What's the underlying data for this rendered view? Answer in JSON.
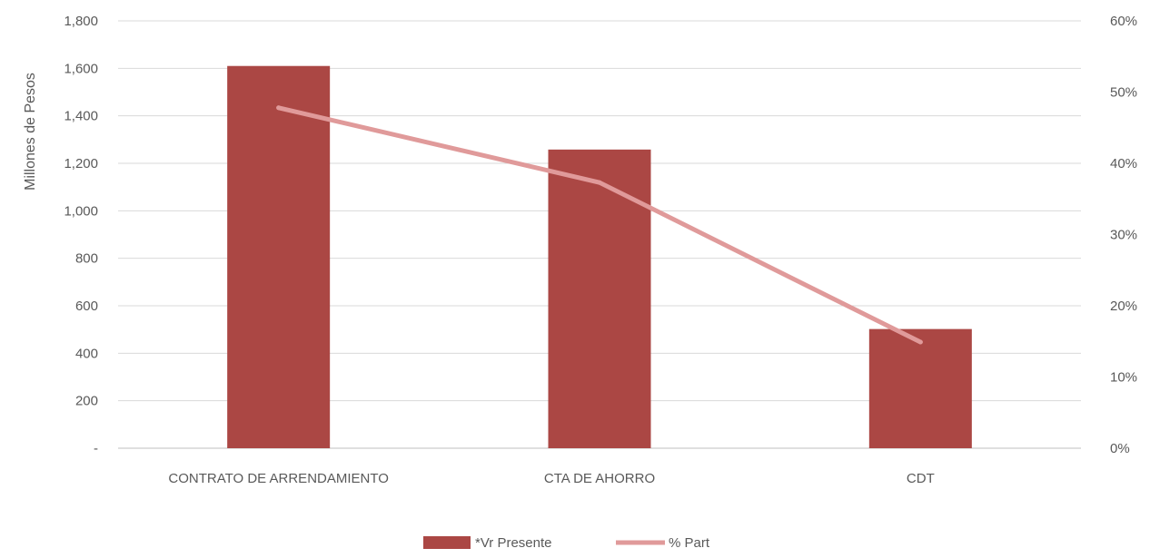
{
  "chart_data": {
    "type": "bar",
    "categories": [
      "CONTRATO DE ARRENDAMIENTO",
      "CTA DE AHORRO",
      "CDT"
    ],
    "series": [
      {
        "name": "*Vr Presente",
        "kind": "bar",
        "axis": "left",
        "values": [
          1610,
          1258,
          502
        ],
        "color": "#AB4744"
      },
      {
        "name": "% Part",
        "kind": "line",
        "axis": "right",
        "values": [
          0.478,
          0.373,
          0.149
        ],
        "color": "#E09A9A"
      }
    ],
    "title": "",
    "xlabel": "",
    "ylabel": "Millones de Pesos",
    "ylim": [
      0,
      1800
    ],
    "y_ticks": [
      0,
      200,
      400,
      600,
      800,
      1000,
      1200,
      1400,
      1600,
      1800
    ],
    "y_tick_labels": [
      "-",
      "200",
      "400",
      "600",
      "800",
      "1,000",
      "1,200",
      "1,400",
      "1,600",
      "1,800"
    ],
    "y2lim": [
      0,
      0.6
    ],
    "y2_ticks": [
      0,
      0.1,
      0.2,
      0.3,
      0.4,
      0.5,
      0.6
    ],
    "y2_tick_labels": [
      "0%",
      "10%",
      "20%",
      "30%",
      "40%",
      "50%",
      "60%"
    ],
    "grid": true,
    "legend_position": "bottom-center"
  }
}
